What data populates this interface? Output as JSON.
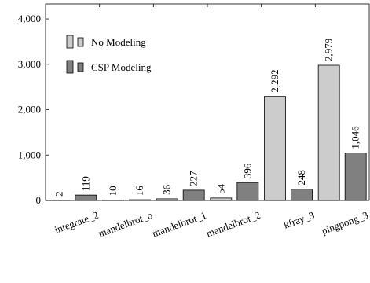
{
  "chart_data": {
    "type": "bar",
    "categories": [
      "integrate_2",
      "mandelbrot_o",
      "mandelbrot_1",
      "mandelbrot_2",
      "kfray_3",
      "pingpong_3"
    ],
    "series": [
      {
        "name": "No Modeling",
        "color": "#cccccc",
        "values": [
          2,
          10,
          36,
          54,
          2292,
          2979
        ],
        "value_labels": [
          "2",
          "10",
          "36",
          "54",
          "2,292",
          "2,979"
        ]
      },
      {
        "name": "CSP Modeling",
        "color": "#808080",
        "values": [
          119,
          16,
          227,
          396,
          248,
          1046
        ],
        "value_labels": [
          "119",
          "16",
          "227",
          "396",
          "248",
          "1,046"
        ]
      }
    ],
    "ylim": [
      0,
      4330
    ],
    "yticks": [
      0,
      {
        "value": 1000,
        "label": "1,000"
      },
      {
        "value": 2000,
        "label": "2,000"
      },
      {
        "value": 3000,
        "label": "3,000"
      },
      {
        "value": 4000,
        "label": "4,000"
      }
    ],
    "legend": "top-left"
  }
}
